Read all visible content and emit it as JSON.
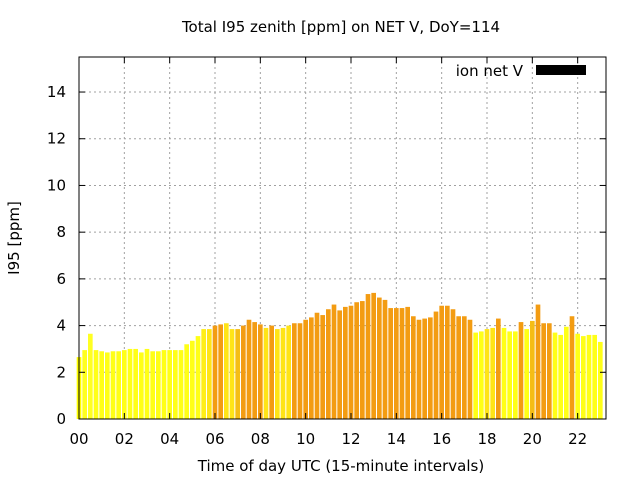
{
  "chart_data": {
    "type": "bar",
    "title": "Total I95 zenith [ppm] on NET V, DoY=114",
    "xlabel": "Time of day UTC (15-minute intervals)",
    "ylabel": "I95 [ppm]",
    "xlim": [
      0,
      23.25
    ],
    "ylim": [
      0,
      15.5
    ],
    "x_ticks": [
      "00",
      "02",
      "04",
      "06",
      "08",
      "10",
      "12",
      "14",
      "16",
      "18",
      "20",
      "22"
    ],
    "x_tick_values": [
      0,
      2,
      4,
      6,
      8,
      10,
      12,
      14,
      16,
      18,
      20,
      22
    ],
    "y_ticks": [
      "0",
      "2",
      "4",
      "6",
      "8",
      "10",
      "12",
      "14"
    ],
    "y_tick_values": [
      0,
      2,
      4,
      6,
      8,
      10,
      12,
      14
    ],
    "grid": true,
    "legend_position": "top-right",
    "series": [
      {
        "name": "ion net V",
        "color": "#000000",
        "x_step_hours": 0.25,
        "values": [
          2.65,
          2.95,
          3.65,
          2.95,
          2.9,
          2.85,
          2.9,
          2.9,
          2.95,
          3.0,
          3.0,
          2.85,
          3.0,
          2.9,
          2.9,
          2.95,
          2.95,
          2.95,
          2.95,
          3.2,
          3.35,
          3.55,
          3.85,
          3.85,
          4.0,
          4.05,
          4.1,
          3.85,
          3.85,
          4.0,
          4.25,
          4.15,
          4.05,
          3.9,
          4.0,
          3.85,
          3.9,
          4.0,
          4.1,
          4.1,
          4.25,
          4.35,
          4.55,
          4.45,
          4.7,
          4.9,
          4.65,
          4.8,
          4.85,
          5.0,
          5.05,
          5.35,
          5.4,
          5.2,
          5.1,
          4.75,
          4.75,
          4.75,
          4.8,
          4.4,
          4.25,
          4.3,
          4.35,
          4.6,
          4.85,
          4.85,
          4.7,
          4.4,
          4.4,
          4.25,
          3.7,
          3.75,
          3.85,
          3.9,
          4.3,
          3.9,
          3.75,
          3.75,
          4.15,
          3.85,
          4.2,
          4.9,
          4.1,
          4.1,
          3.7,
          3.6,
          3.95,
          4.4,
          3.65,
          3.55,
          3.6,
          3.6,
          3.3
        ],
        "bar_colors": [
          "#ffff00",
          "#ffff1f",
          "#ffff22",
          "#ffff17",
          "#ffff17",
          "#ffff17",
          "#ffff17",
          "#ffff17",
          "#ffff17",
          "#ffff17",
          "#ffff17",
          "#ffff17",
          "#ffff17",
          "#ffff17",
          "#ffff17",
          "#ffff17",
          "#ffff17",
          "#ffff17",
          "#ffff17",
          "#ffff17",
          "#ffff17",
          "#ffff17",
          "#ffee17",
          "#ffe417",
          "#f39c12",
          "#f39c12",
          "#ffe417",
          "#ffe417",
          "#f5bd15",
          "#f39c12",
          "#f39c12",
          "#f39c12",
          "#f39c12",
          "#ffe417",
          "#f39c12",
          "#ffe417",
          "#ffe417",
          "#ffe417",
          "#f39c12",
          "#f39c12",
          "#f39c12",
          "#f39c12",
          "#f39c12",
          "#f39c12",
          "#f39c12",
          "#f39c12",
          "#f39c12",
          "#f39c12",
          "#f39c12",
          "#f39c12",
          "#f39c12",
          "#f39c12",
          "#f39c12",
          "#f39c12",
          "#f39c12",
          "#f39c12",
          "#f39c12",
          "#f39c12",
          "#f39c12",
          "#f39c12",
          "#f39c12",
          "#f39c12",
          "#f39c12",
          "#f39c12",
          "#f39c12",
          "#f39c12",
          "#f39c12",
          "#f39c12",
          "#f39c12",
          "#f39c12",
          "#ffff17",
          "#ffff17",
          "#ffe417",
          "#ffe417",
          "#f39c12",
          "#ffff17",
          "#ffff17",
          "#ffff17",
          "#f39c12",
          "#ffff17",
          "#f5bd15",
          "#f39c12",
          "#f39c12",
          "#f39c12",
          "#ffff17",
          "#ffff17",
          "#ffff17",
          "#f39c12",
          "#ffff17",
          "#ffff17",
          "#ffff17",
          "#ffff17",
          "#ffff17"
        ]
      }
    ]
  }
}
